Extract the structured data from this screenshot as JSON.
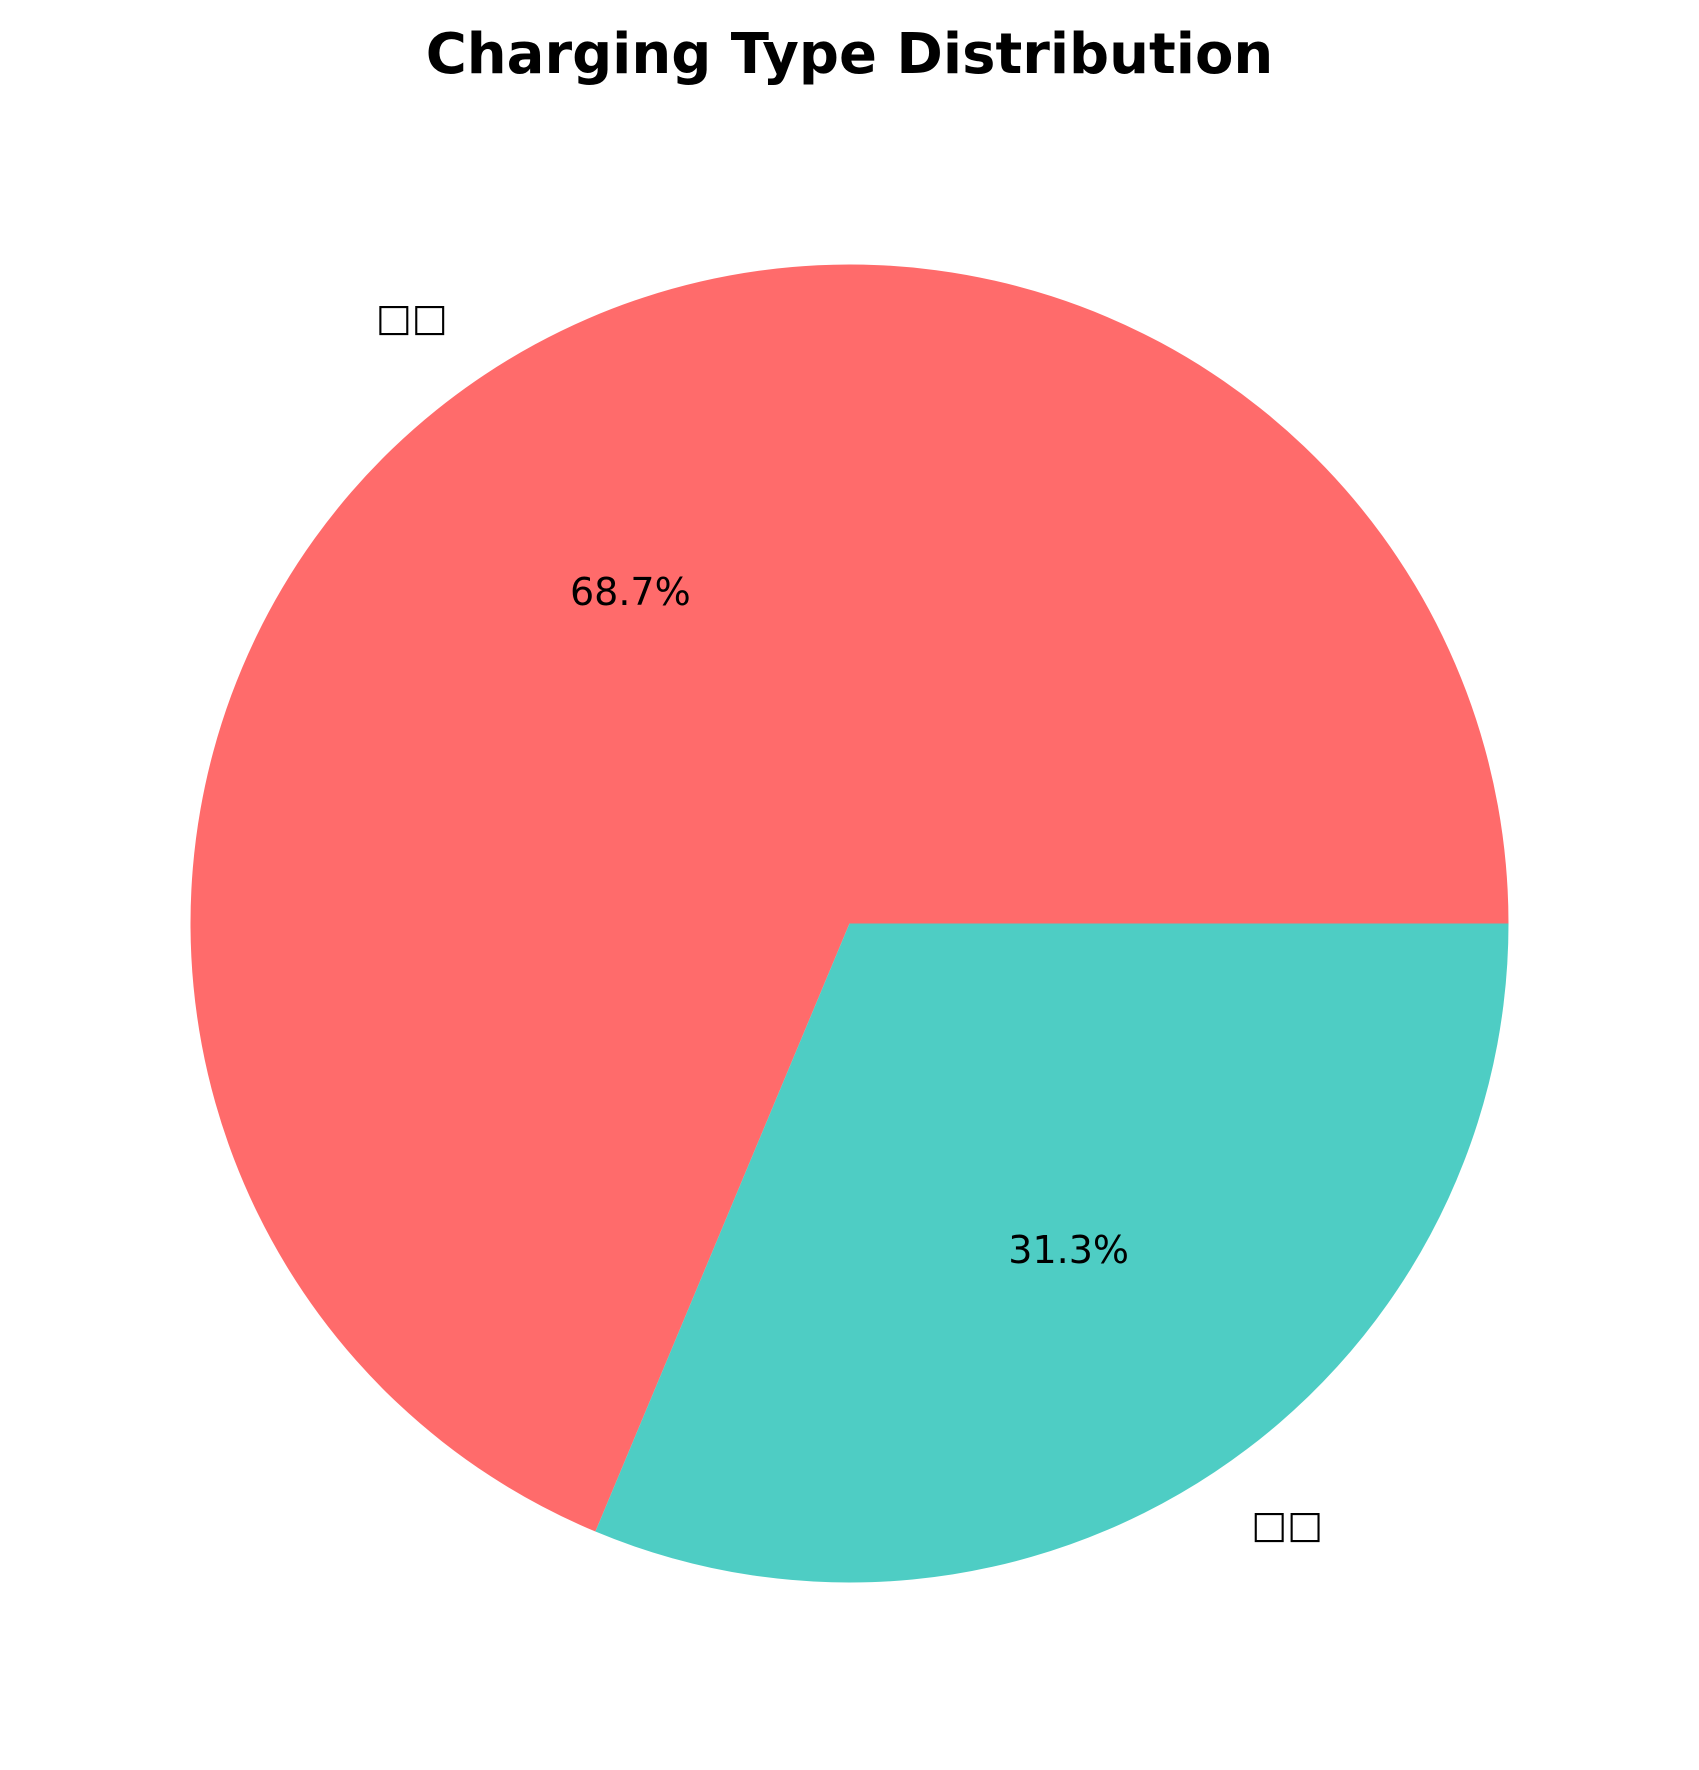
{
  "chart_data": {
    "type": "pie",
    "title": "Charging Type Distribution",
    "categories": [
      "□□",
      "□□"
    ],
    "values": [
      68.7,
      31.3
    ],
    "value_labels": [
      "68.7%",
      "31.3%"
    ],
    "colors": [
      "#ff6b6b",
      "#4ecdc4"
    ],
    "start": "counterclockwise from 3 o'clock",
    "legend": "none"
  }
}
